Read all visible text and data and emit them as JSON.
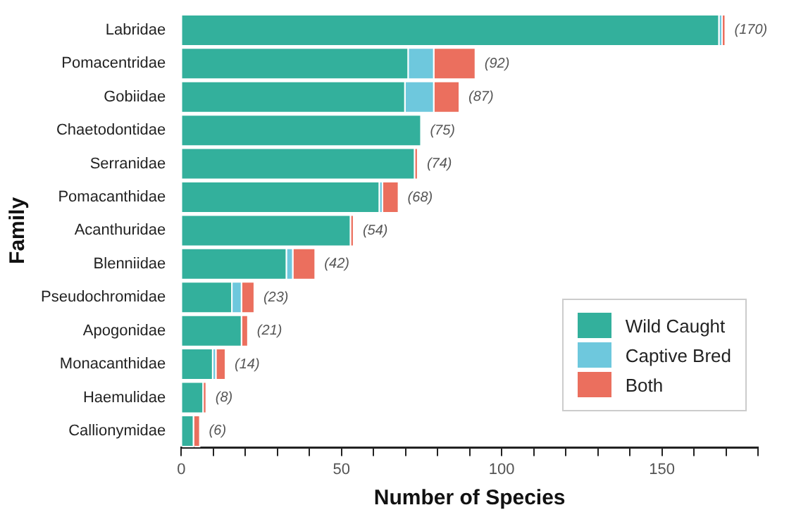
{
  "chart_data": {
    "type": "bar",
    "orientation": "horizontal",
    "stacked": true,
    "xlabel": "Number of Species",
    "ylabel": "Family",
    "categories": [
      "Labridae",
      "Pomacentridae",
      "Gobiidae",
      "Chaetodontidae",
      "Serranidae",
      "Pomacanthidae",
      "Acanthuridae",
      "Blenniidae",
      "Pseudochromidae",
      "Apogonidae",
      "Monacanthidae",
      "Haemulidae",
      "Callionymidae"
    ],
    "series": [
      {
        "name": "Wild Caught",
        "color": "#33b09c",
        "values": [
          168,
          71,
          70,
          75,
          73,
          62,
          53,
          33,
          16,
          19,
          10,
          7,
          4
        ]
      },
      {
        "name": "Captive Bred",
        "color": "#6ec8dd",
        "values": [
          1,
          8,
          9,
          0,
          0,
          1,
          0,
          2,
          3,
          0,
          1,
          0,
          0
        ]
      },
      {
        "name": "Both",
        "color": "#eb6f5e",
        "values": [
          1,
          13,
          8,
          0,
          1,
          5,
          1,
          7,
          4,
          2,
          3,
          1,
          2
        ]
      }
    ],
    "totals": [
      "(170)",
      "(92)",
      "(87)",
      "(75)",
      "(74)",
      "(68)",
      "(54)",
      "(42)",
      "(23)",
      "(21)",
      "(14)",
      "(8)",
      "(6)"
    ],
    "xlim": [
      0,
      180
    ],
    "xticks": [
      0,
      {
        "value": 10,
        "label": null
      },
      {
        "value": 20,
        "label": null
      },
      {
        "value": 30,
        "label": null
      },
      {
        "value": 40,
        "label": null
      },
      50,
      {
        "value": 60,
        "label": null
      },
      {
        "value": 70,
        "label": null
      },
      {
        "value": 80,
        "label": null
      },
      {
        "value": 90,
        "label": null
      },
      100,
      {
        "value": 110,
        "label": null
      },
      {
        "value": 120,
        "label": null
      },
      {
        "value": 130,
        "label": null
      },
      {
        "value": 140,
        "label": null
      },
      150,
      {
        "value": 160,
        "label": null
      },
      {
        "value": 170,
        "label": null
      },
      {
        "value": 180,
        "label": null
      }
    ],
    "grid": false,
    "legend": "bottom right"
  }
}
